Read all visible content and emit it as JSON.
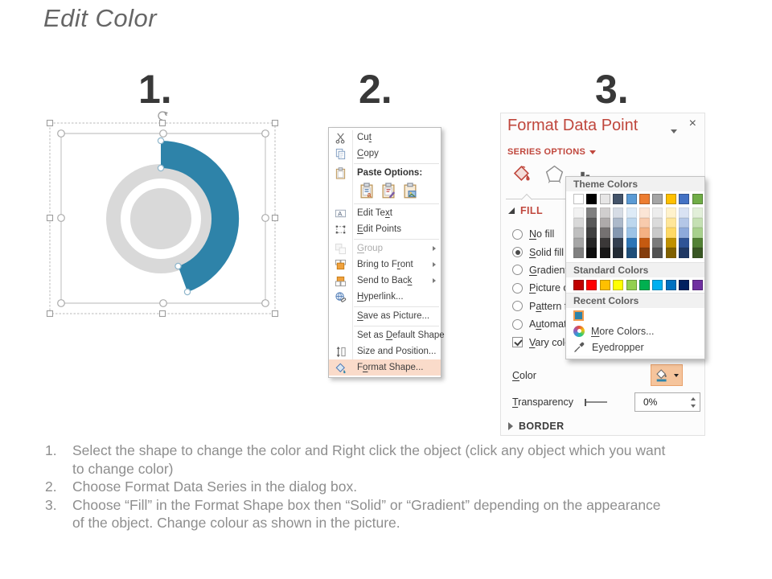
{
  "slide": {
    "title": "Edit Color",
    "step_numbers": [
      "1.",
      "2.",
      "3."
    ],
    "instructions": [
      {
        "num": "1.",
        "lines": [
          "Select the shape to change the color and Right click the object (click any object which you want",
          "to change color)"
        ]
      },
      {
        "num": "2.",
        "lines": [
          "Choose Format Data Series in the dialog box."
        ]
      },
      {
        "num": "3.",
        "lines": [
          "Choose “Fill” in the Format Shape box then “Solid” or “Gradient” depending on the appearance",
          "of the object. Change colour as shown in the picture."
        ]
      }
    ]
  },
  "shape_preview": {
    "donut_gray": "#D9D9D9",
    "arc_blue": "#2E83A9"
  },
  "context_menu": {
    "items": [
      {
        "label": "Cut",
        "u": 2
      },
      {
        "label": "Copy",
        "u": 0
      },
      {
        "label": "Paste Options:",
        "u": -1
      },
      {
        "label": "Edit Text",
        "u": 7
      },
      {
        "label": "Edit Points",
        "u": 0
      },
      {
        "label": "Group",
        "u": 0
      },
      {
        "label": "Bring to Front",
        "u": 10
      },
      {
        "label": "Send to Back",
        "u": 11
      },
      {
        "label": "Hyperlink...",
        "u": 0
      },
      {
        "label": "Save as Picture...",
        "u": 0
      },
      {
        "label": "Set as Default Shape",
        "u": 7
      },
      {
        "label": "Size and Position...",
        "u": -1
      },
      {
        "label": "Format Shape...",
        "u": 1
      }
    ]
  },
  "format_panel": {
    "title": "Format Data Point",
    "series_options_label": "SERIES OPTIONS",
    "fill_header": "FILL",
    "border_header": "BORDER",
    "options": [
      {
        "label": "No fill",
        "u": 0,
        "type": "radio",
        "checked": false
      },
      {
        "label": "Solid fill",
        "u": 0,
        "type": "radio",
        "checked": true
      },
      {
        "label": "Gradient fill",
        "u": 0,
        "type": "radio",
        "checked": false
      },
      {
        "label": "Picture or texture fill",
        "u": 0,
        "type": "radio",
        "checked": false
      },
      {
        "label": "Pattern fill",
        "u": 1,
        "type": "radio",
        "checked": false
      },
      {
        "label": "Automatic",
        "u": 1,
        "type": "radio",
        "checked": false
      },
      {
        "label": "Vary colors by point",
        "u": 0,
        "type": "checkbox",
        "checked": true
      }
    ],
    "color": {
      "label": "Color",
      "u": 0
    },
    "transparency": {
      "label": "Transparency",
      "u": 0
    },
    "transparency_value": "0%",
    "accent_red": "#C0473D"
  },
  "color_popup": {
    "theme_header": "Theme Colors",
    "standard_header": "Standard Colors",
    "recent_header": "Recent Colors",
    "more_colors": {
      "label": "More Colors...",
      "u": 0
    },
    "eyedropper_label": "Eyedropper",
    "theme_columns": [
      {
        "top": "#FFFFFF",
        "variants": [
          "#F2F2F2",
          "#D9D9D9",
          "#BFBFBF",
          "#A6A6A6",
          "#808080"
        ]
      },
      {
        "top": "#000000",
        "variants": [
          "#808080",
          "#595959",
          "#404040",
          "#262626",
          "#0D0D0D"
        ]
      },
      {
        "top": "#E7E6E6",
        "variants": [
          "#D0CECE",
          "#AEAAAA",
          "#757171",
          "#3B3838",
          "#181717"
        ]
      },
      {
        "top": "#44546A",
        "variants": [
          "#D6DCE5",
          "#ACB9CA",
          "#8497B0",
          "#333F50",
          "#222B35"
        ]
      },
      {
        "top": "#5B9BD5",
        "variants": [
          "#DEEBF7",
          "#BDD7EE",
          "#9DC3E6",
          "#2E75B6",
          "#1F4E79"
        ]
      },
      {
        "top": "#ED7D31",
        "variants": [
          "#FBE5D6",
          "#F8CBAD",
          "#F4B183",
          "#C55A11",
          "#843C0C"
        ]
      },
      {
        "top": "#A5A5A5",
        "variants": [
          "#EDEDED",
          "#DBDBDB",
          "#C9C9C9",
          "#7B7B7B",
          "#525252"
        ]
      },
      {
        "top": "#FFC000",
        "variants": [
          "#FFF2CC",
          "#FFE699",
          "#FFD966",
          "#BF9000",
          "#7F6000"
        ]
      },
      {
        "top": "#4472C4",
        "variants": [
          "#D9E2F3",
          "#B4C7E7",
          "#8EAADB",
          "#2F5496",
          "#1F3864"
        ]
      },
      {
        "top": "#70AD47",
        "variants": [
          "#E2EFD9",
          "#C5E0B3",
          "#A8D08D",
          "#538135",
          "#385623"
        ]
      }
    ],
    "standard_colors": [
      "#C00000",
      "#FF0000",
      "#FFC000",
      "#FFFF00",
      "#92D050",
      "#00B050",
      "#00B0F0",
      "#0070C0",
      "#002060",
      "#7030A0"
    ],
    "recent_colors": [
      "#2E83A9"
    ]
  }
}
